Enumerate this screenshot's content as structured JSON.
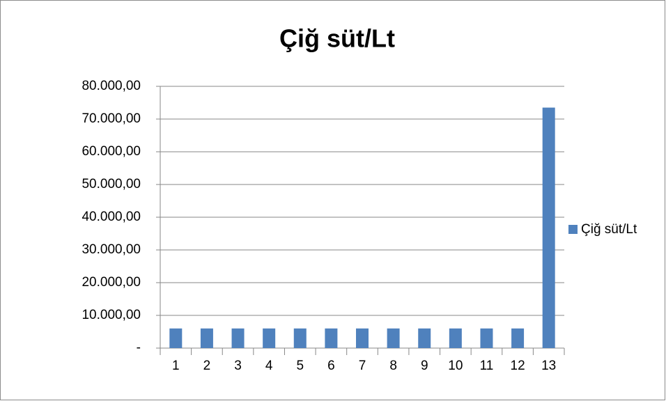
{
  "chart_data": {
    "type": "bar",
    "title": "Çiğ süt/Lt",
    "categories": [
      "1",
      "2",
      "3",
      "4",
      "5",
      "6",
      "7",
      "8",
      "9",
      "10",
      "11",
      "12",
      "13"
    ],
    "series": [
      {
        "name": "Çiğ süt/Lt",
        "color": "#4f81bd",
        "values": [
          6000,
          6000,
          6000,
          6000,
          6000,
          6000,
          6000,
          6000,
          6000,
          6000,
          6000,
          6000,
          73500
        ]
      }
    ],
    "ylim": [
      0,
      80000
    ],
    "yticks": [
      {
        "value": 0,
        "label": "-"
      },
      {
        "value": 10000,
        "label": "10.000,00"
      },
      {
        "value": 20000,
        "label": "20.000,00"
      },
      {
        "value": 30000,
        "label": "30.000,00"
      },
      {
        "value": 40000,
        "label": "40.000,00"
      },
      {
        "value": 50000,
        "label": "50.000,00"
      },
      {
        "value": 60000,
        "label": "60.000,00"
      },
      {
        "value": 70000,
        "label": "70.000,00"
      },
      {
        "value": 80000,
        "label": "80.000,00"
      }
    ],
    "grid": true,
    "legend": "right"
  }
}
